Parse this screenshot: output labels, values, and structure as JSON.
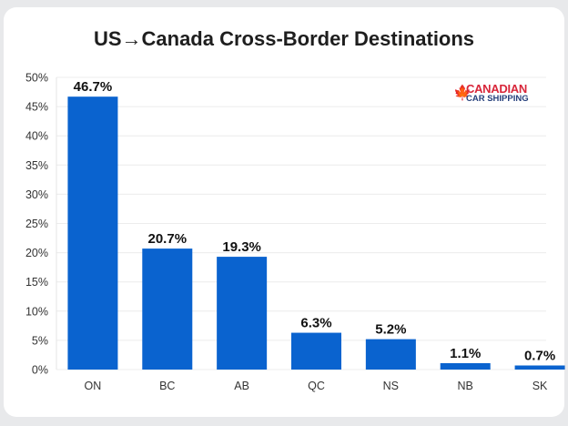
{
  "chart_data": {
    "type": "bar",
    "title": "US→Canada Cross-Border Destinations",
    "categories": [
      "ON",
      "BC",
      "AB",
      "QC",
      "NS",
      "NB",
      "SK"
    ],
    "values": [
      46.7,
      20.7,
      19.3,
      6.3,
      5.2,
      1.1,
      0.7
    ],
    "data_labels": [
      "46.7%",
      "20.7%",
      "19.3%",
      "6.3%",
      "5.2%",
      "1.1%",
      "0.7%"
    ],
    "yticks": [
      "0%",
      "5%",
      "10%",
      "15%",
      "20%",
      "25%",
      "30%",
      "35%",
      "40%",
      "45%",
      "50%"
    ],
    "ylim": [
      0,
      50
    ],
    "xlabel": "",
    "ylabel": "",
    "grid": true,
    "bar_color": "#0a63cf"
  },
  "logo": {
    "line1": "CANADIAN",
    "line2": "CAR SHIPPING"
  }
}
